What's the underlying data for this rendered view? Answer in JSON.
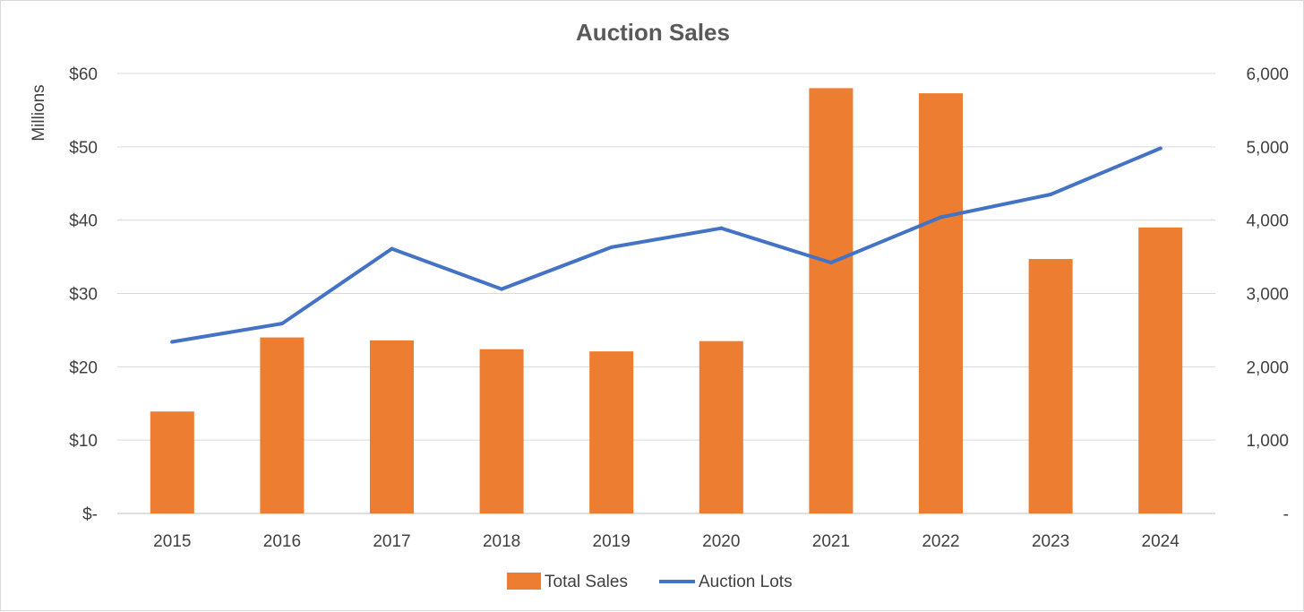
{
  "chart_data": {
    "type": "bar",
    "title": "Auction Sales",
    "xlabel": "",
    "ylabel": "Millions",
    "y2label": "",
    "categories": [
      "2015",
      "2016",
      "2017",
      "2018",
      "2019",
      "2020",
      "2021",
      "2022",
      "2023",
      "2024"
    ],
    "ylim": [
      0,
      60
    ],
    "y2lim": [
      0,
      6000
    ],
    "y_ticks": [
      0,
      10,
      20,
      30,
      40,
      50,
      60
    ],
    "y_tick_labels": [
      "$-",
      "$10",
      "$20",
      "$30",
      "$40",
      "$50",
      "$60"
    ],
    "y2_ticks": [
      0,
      1000,
      2000,
      3000,
      4000,
      5000,
      6000
    ],
    "y2_tick_labels": [
      "-",
      "1,000",
      "2,000",
      "3,000",
      "4,000",
      "5,000",
      "6,000"
    ],
    "grid": true,
    "legend_position": "bottom-center",
    "series": [
      {
        "name": "Total Sales",
        "type": "bar",
        "axis": "left",
        "color": "#ED7D31",
        "values": [
          13.9,
          24.0,
          23.6,
          22.4,
          22.1,
          23.5,
          58.0,
          57.3,
          34.7,
          39.0
        ]
      },
      {
        "name": "Auction Lots",
        "type": "line",
        "axis": "right",
        "color": "#4472C4",
        "values": [
          2340,
          2590,
          3610,
          3060,
          3630,
          3890,
          3420,
          4040,
          4350,
          4980
        ]
      }
    ]
  }
}
